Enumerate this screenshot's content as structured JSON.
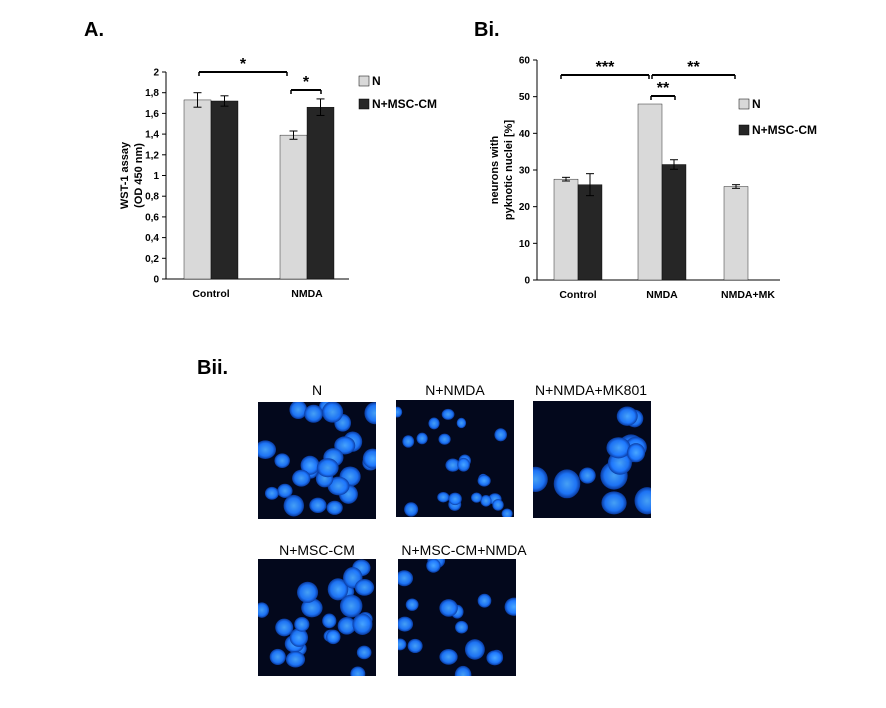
{
  "panels": {
    "a_label": "A.",
    "bi_label": "Bi.",
    "bii_label": "Bii."
  },
  "colors": {
    "N": "#d9d9d9",
    "N_MSC_CM": "#262626",
    "nucleus": "#1e78ff",
    "micrograph_bg": "#03081c"
  },
  "chart_data": [
    {
      "type": "bar",
      "panel": "A.",
      "ylabel": "WST-1 assay\n(OD 450 nm)",
      "ylabel_lines": [
        "WST-1 assay",
        "(OD 450 nm)"
      ],
      "xlabel": "",
      "ylim": [
        0,
        2
      ],
      "yticks": [
        0,
        0.2,
        0.4,
        0.6,
        0.8,
        1,
        1.2,
        1.4,
        1.6,
        1.8,
        2
      ],
      "ytick_labels": [
        "0",
        "0,2",
        "0,4",
        "0,6",
        "0,8",
        "1",
        "1,2",
        "1,4",
        "1,6",
        "1,8",
        "2"
      ],
      "categories": [
        "Control",
        "NMDA"
      ],
      "series": [
        {
          "name": "N",
          "values": [
            1.73,
            1.39
          ],
          "errors": [
            0.07,
            0.04
          ]
        },
        {
          "name": "N+MSC-CM",
          "values": [
            1.72,
            1.66
          ],
          "errors": [
            0.05,
            0.08
          ]
        }
      ],
      "legend_position": "top-right",
      "significance": [
        {
          "label": "*",
          "from": "Control",
          "to": "NMDA"
        },
        {
          "label": "*",
          "from": "NMDA:N",
          "to": "NMDA:N+MSC-CM"
        }
      ]
    },
    {
      "type": "bar",
      "panel": "Bi.",
      "ylabel": "neurons with\npyknotic nuclei [%]",
      "ylabel_lines": [
        "neurons with",
        "pyknotic nuclei [%]"
      ],
      "xlabel": "",
      "ylim": [
        0,
        60
      ],
      "yticks": [
        0,
        10,
        20,
        30,
        40,
        50,
        60
      ],
      "ytick_labels": [
        "0",
        "10",
        "20",
        "30",
        "40",
        "50",
        "60"
      ],
      "categories": [
        "Control",
        "NMDA",
        "NMDA+MK"
      ],
      "series": [
        {
          "name": "N",
          "values": [
            27.5,
            48,
            25.5
          ],
          "errors": [
            0.5,
            0,
            0.5
          ]
        },
        {
          "name": "N+MSC-CM",
          "values": [
            26,
            31.5,
            null
          ],
          "errors": [
            3,
            1.3,
            null
          ]
        }
      ],
      "legend_position": "right",
      "significance": [
        {
          "label": "***",
          "from": "Control",
          "to": "NMDA"
        },
        {
          "label": "**",
          "from": "NMDA",
          "to": "NMDA+MK"
        },
        {
          "label": "**",
          "from": "NMDA:N",
          "to": "NMDA:N+MSC-CM"
        }
      ]
    }
  ],
  "micrographs": [
    {
      "title": "N"
    },
    {
      "title": "N+NMDA"
    },
    {
      "title": "N+NMDA+MK801"
    },
    {
      "title": "N+MSC-CM"
    },
    {
      "title": "N+MSC-CM+NMDA"
    }
  ]
}
